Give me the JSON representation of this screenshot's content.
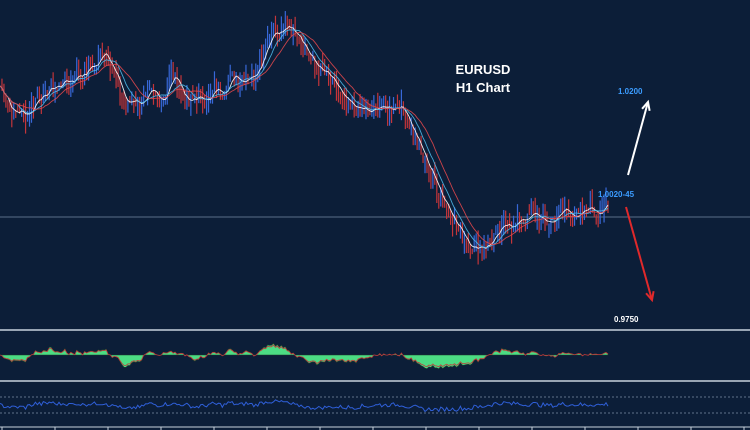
{
  "chart_data": {
    "type": "line",
    "title": "EURUSD",
    "subtitle": "H1 Chart",
    "price_series": [
      1.032,
      1.028,
      1.0245,
      1.026,
      1.024,
      1.027,
      1.03,
      1.029,
      1.0325,
      1.031,
      1.0345,
      1.032,
      1.036,
      1.034,
      1.038,
      1.036,
      1.042,
      1.039,
      1.035,
      1.03,
      1.0265,
      1.0295,
      1.027,
      1.029,
      1.0305,
      1.028,
      1.03,
      1.035,
      1.033,
      1.0285,
      1.0275,
      1.0295,
      1.0285,
      1.029,
      1.0315,
      1.03,
      1.0335,
      1.035,
      1.033,
      1.035,
      1.0345,
      1.039,
      1.043,
      1.047,
      1.044,
      1.048,
      1.0465,
      1.0455,
      1.042,
      1.0385,
      1.0365,
      1.0355,
      1.0335,
      1.0315,
      1.0285,
      1.027,
      1.026,
      1.0265,
      1.0245,
      1.026,
      1.027,
      1.026,
      1.0265,
      1.0275,
      1.0245,
      1.0205,
      1.0165,
      1.0125,
      1.0095,
      1.0055,
      1.0025,
      0.9995,
      0.996,
      0.9935,
      0.9915,
      0.9905,
      0.991,
      0.9915,
      0.9935,
      0.995,
      0.9975,
      0.9955,
      0.9985,
      0.9975,
      0.9995,
      0.9985,
      0.9965,
      0.9975,
      0.999,
      1.0005,
      0.9995,
      0.998,
      0.9995,
      1.0015,
      0.9995,
      1.0005,
      1.0021
    ],
    "levels": [
      {
        "label": "1.0200",
        "value": 1.02,
        "color": "#3b9cff"
      },
      {
        "label": "1.0020-45",
        "value": 1.0032,
        "color": "#3b9cff"
      },
      {
        "label": "0.9750",
        "value": 0.975,
        "color": "#ffffff"
      }
    ],
    "current_price": 1.0032,
    "projections": [
      {
        "direction": "up",
        "target": 1.02,
        "color": "#ffffff"
      },
      {
        "direction": "down",
        "target": 0.975,
        "color": "#e0292b"
      }
    ],
    "ylim": [
      0.97,
      1.054
    ],
    "oscillator_fill_color": "#4cdc83",
    "rsi_color": "#2f5fd8",
    "candle_up_color": "#3868d8",
    "candle_down_color": "#c4353a",
    "ma_colors": [
      "#ffffff",
      "#4fb8e8",
      "#e0474c"
    ]
  }
}
